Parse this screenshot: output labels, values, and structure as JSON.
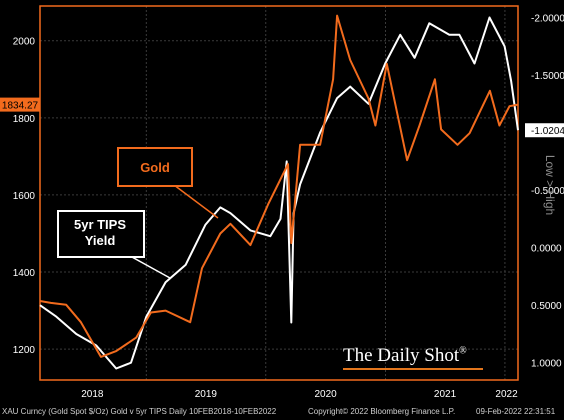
{
  "chart_data": {
    "type": "line",
    "x_axis": {
      "tick_labels": [
        "2018",
        "2019",
        "2020",
        "2021",
        "2022"
      ]
    },
    "left_axis": {
      "ylim": [
        1120,
        2090
      ],
      "ticks": [
        1200,
        1400,
        1600,
        1800,
        2000
      ],
      "last_value": "1834.27"
    },
    "right_axis": {
      "ylim": [
        1.15,
        -2.1
      ],
      "ticks": [
        1.0,
        0.5,
        0.0,
        -0.5,
        -1.0,
        -1.5,
        -2.0
      ],
      "tick_labels": [
        "1.0000",
        "0.5000",
        "0.0000",
        "-0.5000",
        "-1.0000",
        "-1.5000",
        "-2.0000"
      ],
      "inverted": true,
      "last_value": "-1.0204",
      "side_label": "Low > High"
    },
    "series": [
      {
        "name": "Gold",
        "axis": "left",
        "color": "#f26b1d",
        "x": [
          "2018-02-10",
          "2018-03-15",
          "2018-05-01",
          "2018-06-15",
          "2018-08-15",
          "2018-10-01",
          "2018-12-01",
          "2019-01-15",
          "2019-03-01",
          "2019-05-15",
          "2019-06-20",
          "2019-08-15",
          "2019-09-15",
          "2019-11-15",
          "2020-01-08",
          "2020-03-09",
          "2020-03-19",
          "2020-04-15",
          "2020-06-15",
          "2020-07-25",
          "2020-08-06",
          "2020-09-15",
          "2020-11-10",
          "2020-12-01",
          "2021-01-05",
          "2021-03-08",
          "2021-04-15",
          "2021-06-01",
          "2021-06-20",
          "2021-08-09",
          "2021-09-15",
          "2021-11-16",
          "2021-12-15",
          "2022-01-15",
          "2022-02-10"
        ],
        "values": [
          1325,
          1320,
          1315,
          1270,
          1180,
          1195,
          1230,
          1295,
          1300,
          1270,
          1410,
          1500,
          1525,
          1470,
          1575,
          1680,
          1475,
          1730,
          1730,
          1900,
          2065,
          1950,
          1850,
          1780,
          1940,
          1690,
          1780,
          1900,
          1770,
          1730,
          1760,
          1870,
          1780,
          1830,
          1834.27
        ]
      },
      {
        "name": "5yr TIPS Yield",
        "axis": "right",
        "color": "#ffffff",
        "x": [
          "2018-02-10",
          "2018-04-01",
          "2018-06-01",
          "2018-08-01",
          "2018-10-01",
          "2018-11-15",
          "2019-01-01",
          "2019-03-01",
          "2019-05-01",
          "2019-07-01",
          "2019-08-15",
          "2019-09-15",
          "2019-11-15",
          "2020-01-15",
          "2020-02-15",
          "2020-03-05",
          "2020-03-19",
          "2020-03-26",
          "2020-04-15",
          "2020-06-15",
          "2020-08-06",
          "2020-09-15",
          "2020-11-10",
          "2020-12-31",
          "2021-02-15",
          "2021-03-31",
          "2021-05-15",
          "2021-07-15",
          "2021-08-15",
          "2021-09-30",
          "2021-11-15",
          "2021-12-31",
          "2022-01-20",
          "2022-02-10"
        ],
        "values": [
          0.5,
          0.6,
          0.75,
          0.85,
          1.05,
          1.0,
          0.6,
          0.3,
          0.15,
          -0.2,
          -0.35,
          -0.3,
          -0.15,
          -0.1,
          -0.25,
          -0.75,
          0.65,
          -0.3,
          -0.55,
          -1.0,
          -1.3,
          -1.4,
          -1.25,
          -1.6,
          -1.85,
          -1.65,
          -1.95,
          -1.85,
          -1.85,
          -1.6,
          -2.0,
          -1.75,
          -1.45,
          -1.0204
        ]
      }
    ],
    "annotations": [
      {
        "label": "Gold",
        "series": "Gold"
      },
      {
        "label_lines": [
          "5yr TIPS",
          "Yield"
        ],
        "series": "5yr TIPS Yield"
      }
    ]
  },
  "footer": {
    "left": "XAU Curncy (Gold Spot  $/Oz) Gold v 5yr TIPS  Daily 10FEB2018-10FEB2022",
    "center": "Copyright© 2022 Bloomberg Finance L.P.",
    "right": "09-Feb-2022 22:31:51"
  },
  "brand": {
    "text": "The Daily Shot",
    "mark": "®",
    "accent": "#e3761d"
  }
}
